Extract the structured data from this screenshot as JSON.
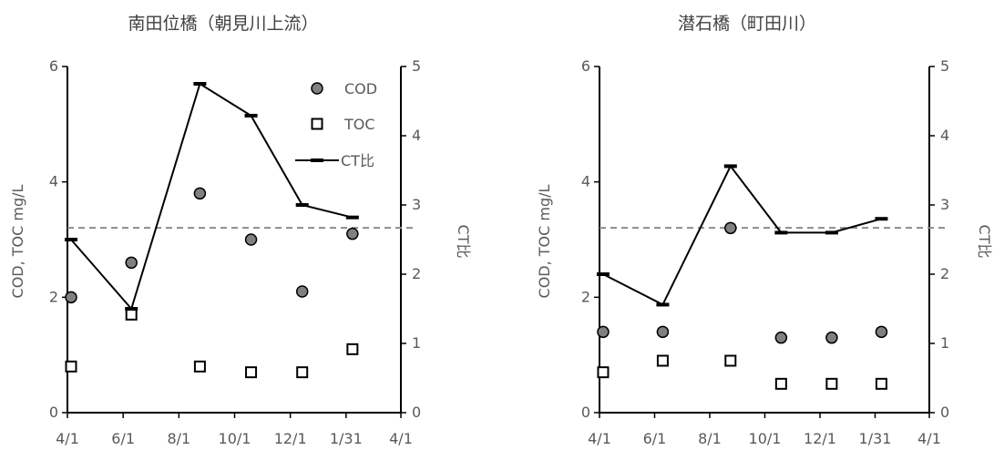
{
  "chart_data": [
    {
      "type": "scatter",
      "title": "南田位橋（朝見川上流）",
      "x_tick_labels": [
        "4/1",
        "6/1",
        "8/1",
        "10/1",
        "12/1",
        "1/31",
        "4/1"
      ],
      "x_tick_dates": [
        "2021-04-01",
        "2021-06-01",
        "2021-08-01",
        "2021-10-01",
        "2021-12-01",
        "2022-01-31",
        "2022-04-01"
      ],
      "xlim": [
        "2021-04-01",
        "2022-04-01"
      ],
      "ylabel": "COD, TOC mg/L",
      "ylim": [
        0,
        6
      ],
      "y_ticks": [
        "0",
        "2",
        "4",
        "6"
      ],
      "y2label": "CT比",
      "y2lim": [
        0,
        5
      ],
      "y2_ticks": [
        "0",
        "1",
        "2",
        "3",
        "4",
        "5"
      ],
      "reference_line_y2": 2.67,
      "legend": [
        "COD",
        "TOC",
        "CT比"
      ],
      "legend_position": "top-right",
      "series": [
        {
          "name": "COD",
          "axis": "left",
          "marker": "circle",
          "color": "#808080",
          "x": [
            "2021-04-05",
            "2021-06-10",
            "2021-08-24",
            "2021-10-19",
            "2021-12-14",
            "2022-02-07"
          ],
          "values": [
            2.0,
            2.6,
            3.8,
            3.0,
            2.1,
            3.1
          ]
        },
        {
          "name": "TOC",
          "axis": "left",
          "marker": "square",
          "color": "#ffffff",
          "x": [
            "2021-04-05",
            "2021-06-10",
            "2021-08-24",
            "2021-10-19",
            "2021-12-14",
            "2022-02-07"
          ],
          "values": [
            0.8,
            1.7,
            0.8,
            0.7,
            0.7,
            1.1
          ]
        },
        {
          "name": "CT比",
          "axis": "right",
          "marker": "dash-line",
          "color": "#000000",
          "x": [
            "2021-04-05",
            "2021-06-10",
            "2021-08-24",
            "2021-10-19",
            "2021-12-14",
            "2022-02-07"
          ],
          "values": [
            2.5,
            1.5,
            4.75,
            4.29,
            3.0,
            2.82
          ]
        }
      ]
    },
    {
      "type": "scatter",
      "title": "潜石橋（町田川）",
      "x_tick_labels": [
        "4/1",
        "6/1",
        "8/1",
        "10/1",
        "12/1",
        "1/31",
        "4/1"
      ],
      "x_tick_dates": [
        "2021-04-01",
        "2021-06-01",
        "2021-08-01",
        "2021-10-01",
        "2021-12-01",
        "2022-01-31",
        "2022-04-01"
      ],
      "xlim": [
        "2021-04-01",
        "2022-04-01"
      ],
      "ylabel": "COD, TOC mg/L",
      "ylim": [
        0,
        6
      ],
      "y_ticks": [
        "0",
        "2",
        "4",
        "6"
      ],
      "y2label": "CT比",
      "y2lim": [
        0,
        5
      ],
      "y2_ticks": [
        "0",
        "1",
        "2",
        "3",
        "4",
        "5"
      ],
      "reference_line_y2": 2.67,
      "series": [
        {
          "name": "COD",
          "axis": "left",
          "marker": "circle",
          "color": "#808080",
          "x": [
            "2021-04-05",
            "2021-06-10",
            "2021-08-24",
            "2021-10-19",
            "2021-12-14",
            "2022-02-07"
          ],
          "values": [
            1.4,
            1.4,
            3.2,
            1.3,
            1.3,
            1.4
          ]
        },
        {
          "name": "TOC",
          "axis": "left",
          "marker": "square",
          "color": "#ffffff",
          "x": [
            "2021-04-05",
            "2021-06-10",
            "2021-08-24",
            "2021-10-19",
            "2021-12-14",
            "2022-02-07"
          ],
          "values": [
            0.7,
            0.9,
            0.9,
            0.5,
            0.5,
            0.5
          ]
        },
        {
          "name": "CT比",
          "axis": "right",
          "marker": "dash-line",
          "color": "#000000",
          "x": [
            "2021-04-05",
            "2021-06-10",
            "2021-08-24",
            "2021-10-19",
            "2021-12-14",
            "2022-02-07"
          ],
          "values": [
            2.0,
            1.56,
            3.56,
            2.6,
            2.6,
            2.8
          ]
        }
      ]
    }
  ]
}
